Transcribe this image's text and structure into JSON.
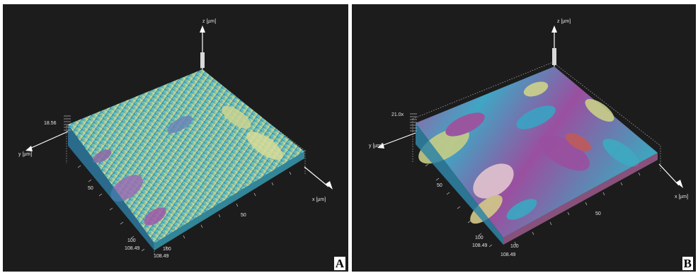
{
  "panels": [
    {
      "id": "A",
      "letter": "A",
      "axes": {
        "z": "z [µm]",
        "y": "y [µm]",
        "x": "x [µm]"
      },
      "z_max": "18.56",
      "y_ticks": [
        "50",
        "100",
        "108.49"
      ],
      "x_ticks": [
        "100",
        "108.49",
        "50"
      ],
      "colors": [
        "#4aa3c7",
        "#35b0c4",
        "#c9d68a",
        "#a87ab8",
        "#8a4f9a"
      ]
    },
    {
      "id": "B",
      "letter": "B",
      "axes": {
        "z": "z [µm]",
        "y": "y [µm]",
        "x": "x [µm]"
      },
      "z_max": "21.0x",
      "y_ticks": [
        "50",
        "100",
        "108.49"
      ],
      "x_ticks": [
        "100",
        "108.49",
        "50"
      ],
      "colors": [
        "#40a7c2",
        "#e3c7d1",
        "#c8cf86",
        "#b24fa0",
        "#7a3e90"
      ]
    }
  ]
}
